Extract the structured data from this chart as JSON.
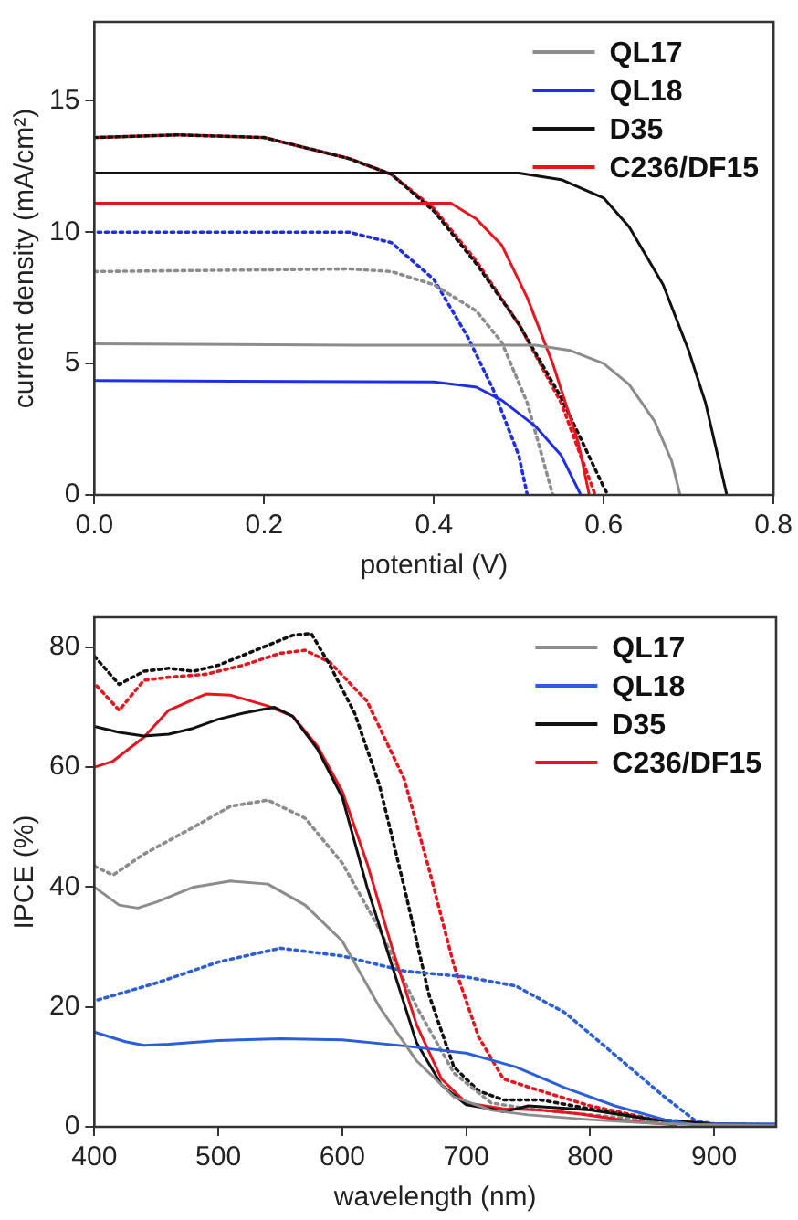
{
  "chart_data": [
    {
      "type": "line",
      "xlabel": "potential (V)",
      "ylabel": "current density (mA/cm²)",
      "xlim": [
        0,
        0.8
      ],
      "xticks": [
        {
          "value": 0,
          "label": "0.0"
        },
        0.2,
        0.4,
        0.6,
        0.8
      ],
      "ylim": [
        0,
        18
      ],
      "yticks": [
        0,
        5,
        10,
        15
      ],
      "legend": "top right",
      "grid": false,
      "series": [
        {
          "name": "QL17",
          "color": "#8c8c8c",
          "x": [
            0,
            0.3,
            0.52,
            0.56,
            0.6,
            0.63,
            0.66,
            0.68,
            0.69
          ],
          "values": [
            5.75,
            5.7,
            5.7,
            5.5,
            5.0,
            4.2,
            2.8,
            1.3,
            0
          ]
        },
        {
          "name": "QL18",
          "color": "#1f2fe8",
          "x": [
            0,
            0.4,
            0.45,
            0.48,
            0.52,
            0.55,
            0.573
          ],
          "values": [
            4.35,
            4.3,
            4.1,
            3.6,
            2.6,
            1.5,
            0
          ]
        },
        {
          "name": "D35",
          "color": "#111111",
          "x": [
            0,
            0.5,
            0.55,
            0.6,
            0.63,
            0.67,
            0.7,
            0.72,
            0.745
          ],
          "values": [
            12.25,
            12.25,
            12.0,
            11.3,
            10.2,
            8,
            5.5,
            3.5,
            0
          ]
        },
        {
          "name": "C236/DF15",
          "color": "#e8141e",
          "x": [
            0,
            0.42,
            0.45,
            0.48,
            0.51,
            0.54,
            0.57,
            0.583
          ],
          "values": [
            11.1,
            11.1,
            10.5,
            9.5,
            7.5,
            5,
            2,
            0
          ]
        },
        {
          "color": "#8c8c8c",
          "line_style": "dotted",
          "x": [
            0,
            0.3,
            0.35,
            0.4,
            0.45,
            0.48,
            0.51,
            0.54
          ],
          "values": [
            8.5,
            8.6,
            8.5,
            8.0,
            7.0,
            5.8,
            3.5,
            0
          ]
        },
        {
          "color": "#1f2fe8",
          "line_style": "dotted",
          "x": [
            0,
            0.3,
            0.35,
            0.4,
            0.44,
            0.47,
            0.5,
            0.51
          ],
          "values": [
            10,
            10,
            9.6,
            8.2,
            6,
            4,
            1.5,
            0
          ]
        },
        {
          "color": "#111111",
          "line_style": "dotted",
          "x": [
            0,
            0.1,
            0.2,
            0.3,
            0.35,
            0.4,
            0.45,
            0.5,
            0.55,
            0.6,
            0.605
          ],
          "values": [
            13.6,
            13.7,
            13.6,
            12.8,
            12.2,
            10.8,
            8.8,
            6.5,
            3.7,
            0.3,
            0
          ]
        },
        {
          "color": "#e8141e",
          "line_style": "dotted",
          "x": [
            0,
            0.1,
            0.2,
            0.3,
            0.35,
            0.4,
            0.45,
            0.5,
            0.55,
            0.59
          ],
          "values": [
            13.6,
            13.7,
            13.6,
            12.8,
            12.2,
            10.9,
            8.9,
            6.5,
            3.5,
            0
          ]
        }
      ]
    },
    {
      "type": "line",
      "xlabel": "wavelength (nm)",
      "ylabel": "IPCE (%)",
      "xlim": [
        400,
        950
      ],
      "xticks": [
        400,
        500,
        600,
        700,
        800,
        900
      ],
      "ylim": [
        0,
        85
      ],
      "yticks": [
        0,
        20,
        40,
        60,
        80
      ],
      "legend": "top right",
      "grid": false,
      "series": [
        {
          "name": "QL17",
          "color": "#8c8c8c",
          "x": [
            400,
            420,
            435,
            450,
            480,
            510,
            540,
            570,
            600,
            630,
            660,
            690,
            720,
            750,
            800,
            850,
            900,
            950
          ],
          "values": [
            40,
            37,
            36.5,
            37.5,
            40,
            41,
            40.5,
            37,
            31,
            20,
            11,
            5,
            2.8,
            2,
            1.2,
            0.6,
            0.3,
            0.2
          ]
        },
        {
          "name": "QL18",
          "color": "#2a5fd8",
          "x": [
            400,
            425,
            440,
            460,
            500,
            550,
            600,
            650,
            700,
            740,
            780,
            820,
            860,
            885,
            900,
            950
          ],
          "values": [
            15.8,
            14.2,
            13.6,
            13.8,
            14.4,
            14.7,
            14.5,
            13.5,
            12.3,
            10,
            6.5,
            3.5,
            1.2,
            0.3,
            0.5,
            0.5
          ]
        },
        {
          "name": "D35",
          "color": "#111111",
          "x": [
            400,
            420,
            440,
            460,
            480,
            500,
            520,
            545,
            560,
            580,
            600,
            620,
            640,
            660,
            680,
            700,
            720,
            730,
            750,
            800,
            850,
            900,
            950
          ],
          "values": [
            66.8,
            65.8,
            65.2,
            65.5,
            66.5,
            68,
            69,
            70,
            68.5,
            63,
            55,
            40,
            27,
            14,
            7,
            3.7,
            3,
            2.5,
            3.5,
            2.8,
            1.2,
            0.5,
            0.3
          ]
        },
        {
          "name": "C236/DF15",
          "color": "#e8141e",
          "x": [
            400,
            415,
            440,
            460,
            490,
            510,
            540,
            560,
            580,
            600,
            620,
            640,
            660,
            680,
            700,
            730,
            760,
            790,
            830,
            870
          ],
          "values": [
            60,
            61,
            65,
            69.5,
            72.2,
            72,
            70.2,
            68.5,
            63.5,
            56,
            44,
            30,
            17,
            8,
            4,
            3,
            2.8,
            2.2,
            1,
            0.3
          ]
        },
        {
          "color": "#8c8c8c",
          "line_style": "dotted",
          "x": [
            400,
            415,
            440,
            480,
            510,
            540,
            570,
            600,
            630,
            660,
            690,
            720,
            750,
            800,
            850,
            900,
            950
          ],
          "values": [
            43.5,
            42,
            45.5,
            50,
            53.5,
            54.5,
            51.5,
            44,
            33,
            20,
            9,
            4,
            3,
            2,
            1,
            0.5,
            0.3
          ]
        },
        {
          "color": "#2a5fd8",
          "line_style": "dotted",
          "x": [
            400,
            450,
            500,
            550,
            600,
            650,
            700,
            740,
            780,
            820,
            860,
            885,
            900,
            950
          ],
          "values": [
            21,
            24,
            27.5,
            29.8,
            28.5,
            26,
            25,
            23.5,
            19,
            12,
            5,
            1,
            0.5,
            0.3
          ]
        },
        {
          "color": "#111111",
          "line_style": "dotted",
          "x": [
            400,
            420,
            440,
            460,
            480,
            500,
            530,
            560,
            575,
            590,
            610,
            630,
            650,
            670,
            690,
            710,
            730,
            760,
            800,
            850,
            900,
            950
          ],
          "values": [
            78.5,
            73.8,
            76,
            76.5,
            76,
            77,
            79.5,
            82,
            82.3,
            77,
            69,
            57,
            40,
            22,
            10,
            6,
            4.5,
            4.5,
            3,
            1.2,
            0.5,
            0.3
          ]
        },
        {
          "color": "#e8141e",
          "line_style": "dotted",
          "x": [
            400,
            420,
            440,
            460,
            490,
            520,
            550,
            570,
            590,
            620,
            650,
            670,
            690,
            710,
            730,
            760,
            800,
            850,
            900,
            950
          ],
          "values": [
            74,
            69.5,
            74.5,
            75,
            75.5,
            77,
            79,
            79.5,
            77.5,
            71,
            58,
            43,
            27,
            15,
            8,
            6,
            3.5,
            1.3,
            0.5,
            0.3
          ]
        }
      ]
    }
  ]
}
